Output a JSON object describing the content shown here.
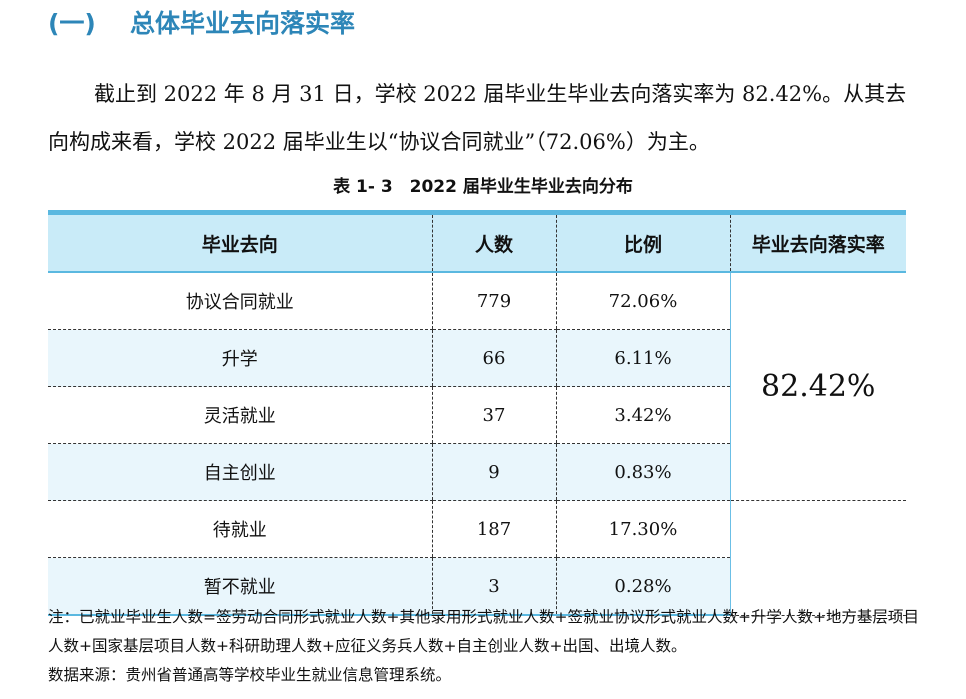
{
  "section": {
    "number": "(一)",
    "title": "总体毕业去向落实率"
  },
  "paragraph": "截止到 2022 年 8 月 31 日，学校 2022 届毕业生毕业去向落实率为 82.42%。从其去向构成来看，学校 2022 届毕业生以“协议合同就业”（72.06%）为主。",
  "table": {
    "caption": "表 1- 3　2022 届毕业生毕业去向分布",
    "headers": [
      "毕业去向",
      "人数",
      "比例",
      "毕业去向落实率"
    ],
    "rows": [
      {
        "destination": "协议合同就业",
        "count": "779",
        "ratio": "72.06%"
      },
      {
        "destination": "升学",
        "count": "66",
        "ratio": "6.11%"
      },
      {
        "destination": "灵活就业",
        "count": "37",
        "ratio": "3.42%"
      },
      {
        "destination": "自主创业",
        "count": "9",
        "ratio": "0.83%"
      },
      {
        "destination": "待就业",
        "count": "187",
        "ratio": "17.30%"
      },
      {
        "destination": "暂不就业",
        "count": "3",
        "ratio": "0.28%"
      }
    ],
    "placement_rate": "82.42%"
  },
  "notes": {
    "note": "注：已就业毕业生人数=签劳动合同形式就业人数+其他录用形式就业人数+签就业协议形式就业人数+升学人数+地方基层项目人数+国家基层项目人数+科研助理人数+应征义务兵人数+自主创业人数+出国、出境人数。",
    "source": "数据来源：贵州省普通高等学校毕业生就业信息管理系统。"
  }
}
